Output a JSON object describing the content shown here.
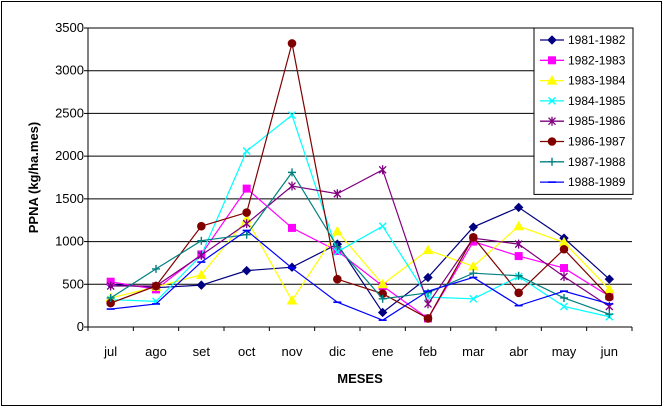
{
  "chart_data": {
    "type": "line",
    "title": "",
    "xlabel": "MESES",
    "ylabel": "PPNA (kg/ha.mes)",
    "ylim": [
      0,
      3500
    ],
    "yticks": [
      0,
      500,
      1000,
      1500,
      2000,
      2500,
      3000,
      3500
    ],
    "grid": true,
    "legend_position": "top-right",
    "categories": [
      "jul",
      "ago",
      "set",
      "oct",
      "nov",
      "dic",
      "ene",
      "feb",
      "mar",
      "abr",
      "may",
      "jun"
    ],
    "series": [
      {
        "name": "1981-1982",
        "color": "#000080",
        "marker": "diamond",
        "values": [
          500,
          460,
          490,
          660,
          700,
          970,
          170,
          580,
          1170,
          1400,
          1040,
          560
        ]
      },
      {
        "name": "1982-1983",
        "color": "#ff00ff",
        "marker": "square",
        "values": [
          530,
          440,
          850,
          1620,
          1160,
          890,
          480,
          100,
          1000,
          830,
          690,
          360
        ]
      },
      {
        "name": "1983-1984",
        "color": "#ffff00",
        "marker": "triangle",
        "values": [
          340,
          470,
          610,
          1260,
          310,
          1120,
          500,
          900,
          710,
          1180,
          990,
          440
        ]
      },
      {
        "name": "1984-1985",
        "color": "#00ffff",
        "marker": "x",
        "values": [
          320,
          300,
          840,
          2060,
          2480,
          880,
          1180,
          350,
          330,
          590,
          240,
          120
        ]
      },
      {
        "name": "1985-1986",
        "color": "#800080",
        "marker": "star",
        "values": [
          480,
          480,
          840,
          1210,
          1650,
          1560,
          1840,
          270,
          1040,
          970,
          590,
          240
        ]
      },
      {
        "name": "1986-1987",
        "color": "#800000",
        "marker": "circle",
        "values": [
          280,
          480,
          1180,
          1340,
          3320,
          560,
          390,
          100,
          1050,
          400,
          910,
          350
        ]
      },
      {
        "name": "1987-1988",
        "color": "#008080",
        "marker": "plus",
        "values": [
          340,
          680,
          1010,
          1080,
          1810,
          940,
          330,
          400,
          630,
          600,
          340,
          150
        ]
      },
      {
        "name": "1988-1989",
        "color": "#0000ff",
        "marker": "dash",
        "values": [
          210,
          270,
          760,
          1130,
          690,
          290,
          80,
          420,
          580,
          250,
          420,
          270
        ]
      }
    ]
  }
}
